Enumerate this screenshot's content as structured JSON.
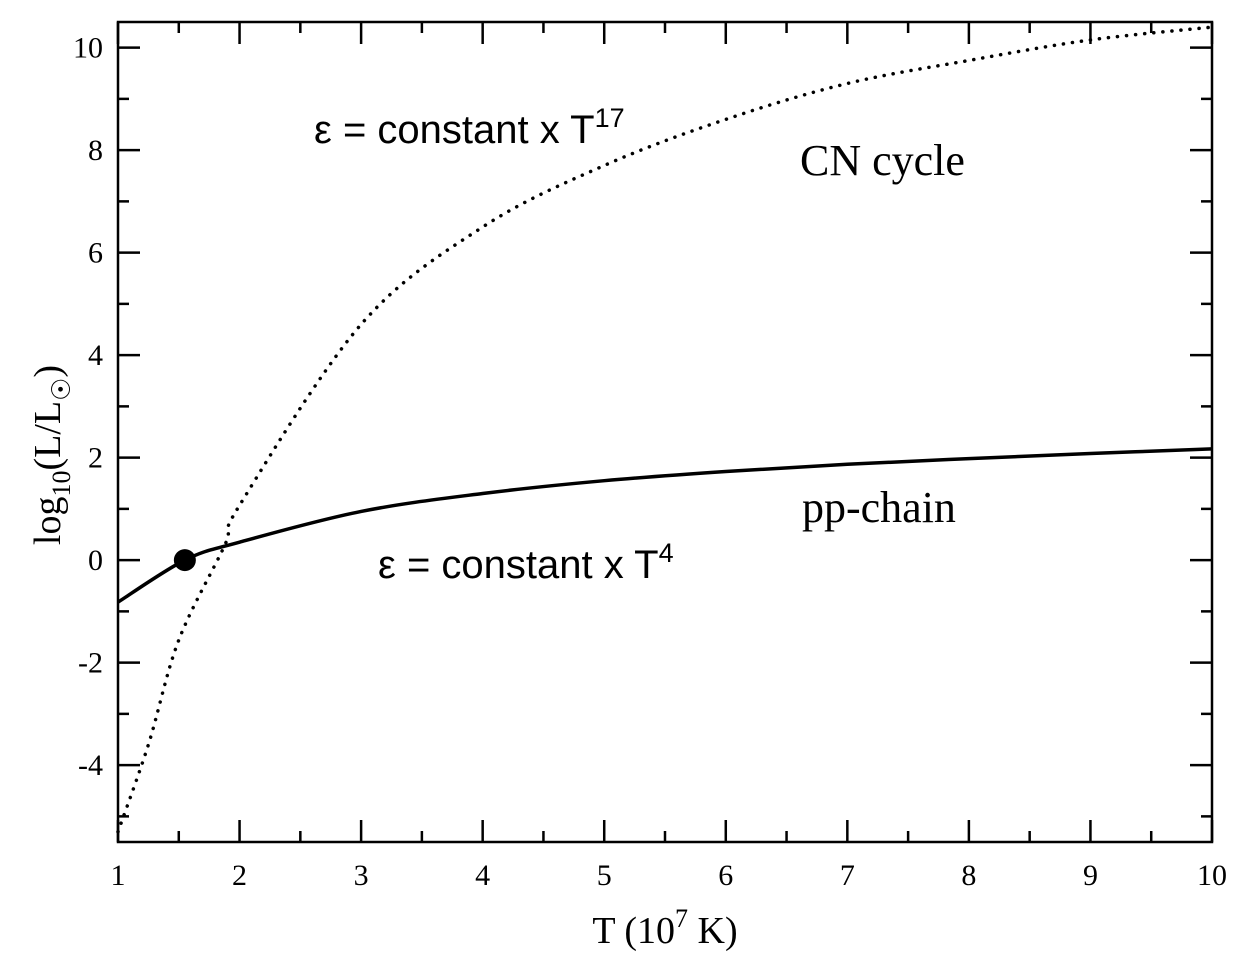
{
  "chart_data": {
    "type": "line",
    "xlabel": [
      "T (10",
      "7",
      " K)"
    ],
    "ylabel": [
      "log",
      "10",
      "(L/L",
      "☉",
      ")"
    ],
    "xlim": [
      1,
      10
    ],
    "ylim": [
      -5.5,
      10.5
    ],
    "xticks": [
      1,
      2,
      3,
      4,
      5,
      6,
      7,
      8,
      9,
      10
    ],
    "yticks": [
      -4,
      -2,
      0,
      2,
      4,
      6,
      8,
      10
    ],
    "xminor_ticks": [
      1.5,
      2.5,
      3.5,
      4.5,
      5.5,
      6.5,
      7.5,
      8.5,
      9.5
    ],
    "yminor_ticks": [
      -5,
      -3,
      -1,
      1,
      3,
      5,
      7,
      9
    ],
    "series": [
      {
        "name": "CN cycle",
        "color": "#000000",
        "style": "dotted",
        "x": [
          1,
          1.25,
          1.5,
          1.88,
          2,
          3,
          4,
          5,
          6,
          7,
          8,
          9,
          10
        ],
        "values": [
          -5.3,
          -3.6,
          -1.56,
          0.3,
          1.07,
          4.6,
          6.5,
          7.7,
          8.6,
          9.3,
          9.75,
          10.15,
          10.4
        ]
      },
      {
        "name": "pp-chain",
        "color": "#000000",
        "style": "solid",
        "x": [
          1,
          1.55,
          2,
          3,
          4,
          5,
          6,
          7,
          8,
          9,
          10
        ],
        "values": [
          -0.82,
          0,
          0.35,
          0.95,
          1.3,
          1.55,
          1.73,
          1.87,
          1.98,
          2.08,
          2.17
        ]
      }
    ],
    "points": [
      {
        "x": 1.55,
        "y": 0
      }
    ],
    "annotations": [
      {
        "text": "ε = constant x T",
        "sup": "17"
      },
      {
        "text": "ε = constant x T",
        "sup": "4"
      }
    ]
  }
}
